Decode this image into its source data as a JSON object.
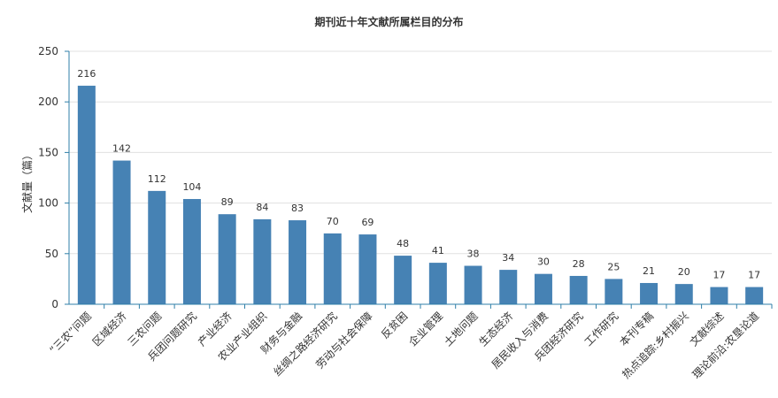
{
  "chart_data": {
    "type": "bar",
    "title": "期刊近十年文献所属栏目的分布",
    "ylabel": "文献量（篇）",
    "xlabel": "",
    "ylim": [
      0,
      250
    ],
    "yticks": [
      0,
      50,
      100,
      150,
      200,
      250
    ],
    "grid": true,
    "bar_color": "#4682b4",
    "categories": [
      "“三农”问题",
      "区域经济",
      "三农问题",
      "兵团问题研究",
      "产业经济",
      "农业产业组织",
      "财务与金融",
      "丝绸之路经济研究",
      "劳动与社会保障",
      "反贫困",
      "企业管理",
      "土地问题",
      "生态经济",
      "居民收入与消费",
      "兵团经济研究",
      "工作研究",
      "本刊专稿",
      "热点追踪:乡村振兴",
      "文献综述",
      "理论前沿:农垦论道"
    ],
    "values": [
      216,
      142,
      112,
      104,
      89,
      84,
      83,
      70,
      69,
      48,
      41,
      38,
      34,
      30,
      28,
      25,
      21,
      20,
      17,
      17
    ]
  }
}
